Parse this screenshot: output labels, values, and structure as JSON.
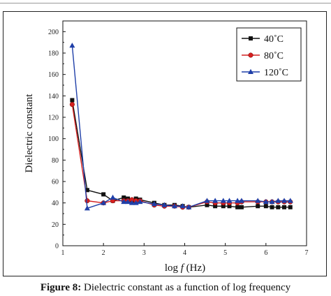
{
  "caption": {
    "label": "Figure 8:",
    "text": " Dielectric constant as a function of log frequency"
  },
  "colors": {
    "series_40": "#111111",
    "series_80": "#d42020",
    "series_120": "#1f3fa8"
  },
  "chart_data": {
    "type": "line",
    "xlabel_prefix": "log ",
    "xlabel_var": "f",
    "xlabel_suffix": " (Hz)",
    "ylabel": "Dielectric constant",
    "xlim": [
      1,
      7
    ],
    "ylim": [
      0,
      210
    ],
    "xticks": [
      "1",
      "2",
      "3",
      "4",
      "5",
      "6",
      "7"
    ],
    "yticks": [
      "0",
      "20",
      "40",
      "60",
      "80",
      "100",
      "120",
      "140",
      "160",
      "180",
      "200"
    ],
    "legend_position": "top-right",
    "x": [
      1.23,
      1.6,
      2.0,
      2.23,
      2.5,
      2.6,
      2.7,
      2.8,
      2.9,
      3.25,
      3.5,
      3.75,
      3.95,
      4.1,
      4.55,
      4.75,
      4.95,
      5.1,
      5.3,
      5.4,
      5.8,
      6.0,
      6.15,
      6.3,
      6.45,
      6.6
    ],
    "series": [
      {
        "name": "40˚C",
        "marker": "square",
        "values": [
          136,
          52,
          48,
          42,
          45,
          44,
          42,
          44,
          43,
          40,
          38,
          38,
          37,
          36,
          38,
          37,
          37,
          37,
          36,
          36,
          37,
          37,
          36,
          36,
          36,
          36
        ]
      },
      {
        "name": "80˚C",
        "marker": "circle",
        "values": [
          132,
          42,
          40,
          42,
          42,
          42,
          43,
          42,
          42,
          38,
          37,
          37,
          36,
          36,
          41,
          40,
          40,
          40,
          40,
          41,
          41,
          41,
          41,
          41,
          41,
          41
        ]
      },
      {
        "name": "120˚C",
        "marker": "triangle",
        "values": [
          187,
          35,
          40,
          45,
          41,
          41,
          40,
          40,
          41,
          39,
          38,
          37,
          37,
          36,
          42,
          42,
          42,
          42,
          42,
          42,
          42,
          41,
          41,
          42,
          42,
          42
        ]
      }
    ]
  }
}
